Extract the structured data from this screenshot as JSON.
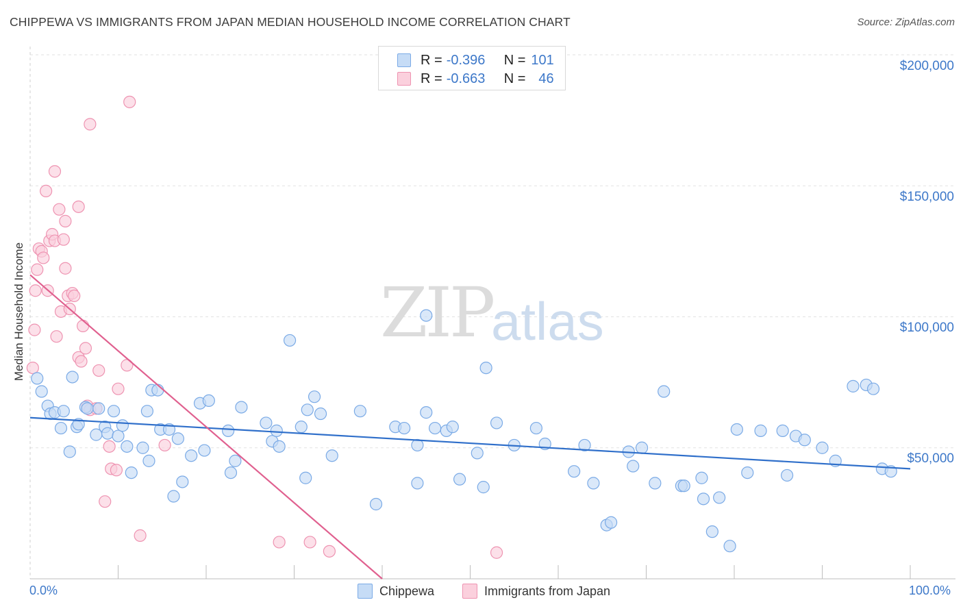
{
  "header": {
    "title": "CHIPPEWA VS IMMIGRANTS FROM JAPAN MEDIAN HOUSEHOLD INCOME CORRELATION CHART",
    "source": "Source: ZipAtlas.com"
  },
  "watermark": {
    "zip": "ZIP",
    "atlas": "atlas"
  },
  "legend": {
    "rows": [
      {
        "r_label": "R =",
        "r_value": "-0.396",
        "n_label": "N =",
        "n_value": "101"
      },
      {
        "r_label": "R =",
        "r_value": "-0.663",
        "n_label": "N =",
        "n_value": "46"
      }
    ],
    "bottom": [
      "Chippewa",
      "Immigrants from Japan"
    ]
  },
  "axes": {
    "ylabel": "Median Household Income",
    "ytick_labels": [
      "$200,000",
      "$150,000",
      "$100,000",
      "$50,000"
    ],
    "xtick_labels": [
      "0.0%",
      "100.0%"
    ]
  },
  "colors": {
    "blue_fill": "#c6dcf6",
    "blue_stroke": "#7aaae6",
    "blue_line": "#2f6fca",
    "pink_fill": "#fbd0dd",
    "pink_stroke": "#ee93b1",
    "pink_line": "#e0608f",
    "grid": "#e2e2e2",
    "accent_text": "#3d78c9"
  },
  "chart_data": {
    "type": "scatter",
    "title": "CHIPPEWA VS IMMIGRANTS FROM JAPAN MEDIAN HOUSEHOLD INCOME CORRELATION CHART",
    "xlabel": "",
    "ylabel": "Median Household Income",
    "xlim": [
      0,
      100
    ],
    "ylim": [
      0,
      200000
    ],
    "yticks": [
      50000,
      100000,
      150000,
      200000
    ],
    "grid": true,
    "legend_position": "top-center",
    "series": [
      {
        "name": "Chippewa",
        "r": -0.396,
        "n": 101,
        "trend": {
          "x": [
            0,
            100
          ],
          "y": [
            61500,
            42000
          ]
        },
        "points": [
          [
            0.8,
            76500
          ],
          [
            1.3,
            71500
          ],
          [
            2.0,
            66000
          ],
          [
            2.3,
            63000
          ],
          [
            2.8,
            63500
          ],
          [
            3.5,
            57500
          ],
          [
            3.8,
            64000
          ],
          [
            4.5,
            48500
          ],
          [
            4.8,
            77000
          ],
          [
            5.3,
            58000
          ],
          [
            5.5,
            59000
          ],
          [
            6.3,
            65500
          ],
          [
            6.5,
            65000
          ],
          [
            7.5,
            55000
          ],
          [
            7.8,
            65000
          ],
          [
            8.5,
            58000
          ],
          [
            8.8,
            55500
          ],
          [
            9.5,
            64000
          ],
          [
            10.0,
            54500
          ],
          [
            10.5,
            58500
          ],
          [
            11.0,
            50500
          ],
          [
            11.5,
            40500
          ],
          [
            12.8,
            50000
          ],
          [
            13.3,
            64000
          ],
          [
            13.5,
            45000
          ],
          [
            13.8,
            72000
          ],
          [
            14.5,
            72000
          ],
          [
            14.8,
            57000
          ],
          [
            15.8,
            57000
          ],
          [
            16.3,
            31500
          ],
          [
            16.8,
            53500
          ],
          [
            17.3,
            37000
          ],
          [
            18.3,
            47000
          ],
          [
            19.3,
            67000
          ],
          [
            19.8,
            49000
          ],
          [
            20.3,
            68000
          ],
          [
            22.5,
            56500
          ],
          [
            22.8,
            40500
          ],
          [
            23.3,
            45000
          ],
          [
            24.0,
            65500
          ],
          [
            26.8,
            59500
          ],
          [
            27.5,
            52500
          ],
          [
            28.0,
            56500
          ],
          [
            28.3,
            50500
          ],
          [
            29.5,
            91000
          ],
          [
            30.8,
            58000
          ],
          [
            31.3,
            38500
          ],
          [
            31.5,
            64500
          ],
          [
            32.3,
            69500
          ],
          [
            33.0,
            63000
          ],
          [
            34.3,
            47000
          ],
          [
            37.5,
            64000
          ],
          [
            39.3,
            28500
          ],
          [
            41.5,
            58000
          ],
          [
            42.5,
            57500
          ],
          [
            44.0,
            51000
          ],
          [
            44.0,
            36500
          ],
          [
            45.0,
            100500
          ],
          [
            45.0,
            63500
          ],
          [
            46.0,
            57500
          ],
          [
            47.3,
            56500
          ],
          [
            48.0,
            58000
          ],
          [
            48.8,
            38000
          ],
          [
            50.8,
            48000
          ],
          [
            51.5,
            35000
          ],
          [
            51.8,
            80500
          ],
          [
            53.0,
            59500
          ],
          [
            55.0,
            51000
          ],
          [
            57.5,
            57500
          ],
          [
            58.5,
            51500
          ],
          [
            61.8,
            41000
          ],
          [
            63.0,
            51000
          ],
          [
            64.0,
            36500
          ],
          [
            65.5,
            20500
          ],
          [
            66.0,
            21500
          ],
          [
            68.0,
            48500
          ],
          [
            68.5,
            43000
          ],
          [
            69.5,
            50000
          ],
          [
            71.0,
            36500
          ],
          [
            72.0,
            71500
          ],
          [
            74.0,
            35500
          ],
          [
            74.3,
            35500
          ],
          [
            76.3,
            38500
          ],
          [
            76.5,
            30500
          ],
          [
            77.5,
            18000
          ],
          [
            78.3,
            31000
          ],
          [
            79.5,
            12500
          ],
          [
            80.3,
            57000
          ],
          [
            81.5,
            40500
          ],
          [
            83.0,
            56500
          ],
          [
            85.5,
            56500
          ],
          [
            86.0,
            39500
          ],
          [
            87.0,
            54500
          ],
          [
            88.0,
            53000
          ],
          [
            90.0,
            50000
          ],
          [
            91.5,
            45000
          ],
          [
            93.5,
            73500
          ],
          [
            95.0,
            74000
          ],
          [
            95.8,
            72500
          ],
          [
            96.8,
            42000
          ],
          [
            97.8,
            41000
          ]
        ]
      },
      {
        "name": "Immigrants from Japan",
        "r": -0.663,
        "n": 46,
        "trend": {
          "x": [
            0,
            40
          ],
          "y": [
            116000,
            0
          ]
        },
        "points": [
          [
            0.3,
            80500
          ],
          [
            0.5,
            95000
          ],
          [
            0.6,
            110000
          ],
          [
            0.8,
            118000
          ],
          [
            1.0,
            126000
          ],
          [
            1.3,
            125000
          ],
          [
            1.5,
            122500
          ],
          [
            1.8,
            148000
          ],
          [
            2.0,
            110000
          ],
          [
            2.2,
            129000
          ],
          [
            2.5,
            131500
          ],
          [
            2.8,
            129000
          ],
          [
            2.8,
            155500
          ],
          [
            3.0,
            92500
          ],
          [
            3.3,
            141000
          ],
          [
            3.5,
            102000
          ],
          [
            3.8,
            129500
          ],
          [
            4.0,
            136500
          ],
          [
            4.0,
            118500
          ],
          [
            4.3,
            108000
          ],
          [
            4.5,
            103000
          ],
          [
            4.8,
            109000
          ],
          [
            5.0,
            108000
          ],
          [
            5.5,
            142000
          ],
          [
            5.5,
            84500
          ],
          [
            5.8,
            83000
          ],
          [
            6.0,
            96500
          ],
          [
            6.3,
            88000
          ],
          [
            6.5,
            66000
          ],
          [
            6.8,
            64500
          ],
          [
            6.8,
            173500
          ],
          [
            7.5,
            65000
          ],
          [
            7.8,
            79500
          ],
          [
            8.5,
            29500
          ],
          [
            9.0,
            50500
          ],
          [
            9.2,
            42000
          ],
          [
            9.8,
            41500
          ],
          [
            10.0,
            72500
          ],
          [
            11.0,
            81500
          ],
          [
            11.3,
            182000
          ],
          [
            12.5,
            16500
          ],
          [
            15.3,
            51000
          ],
          [
            28.3,
            14000
          ],
          [
            31.8,
            14000
          ],
          [
            34.0,
            10500
          ],
          [
            53.0,
            10000
          ]
        ]
      }
    ]
  }
}
